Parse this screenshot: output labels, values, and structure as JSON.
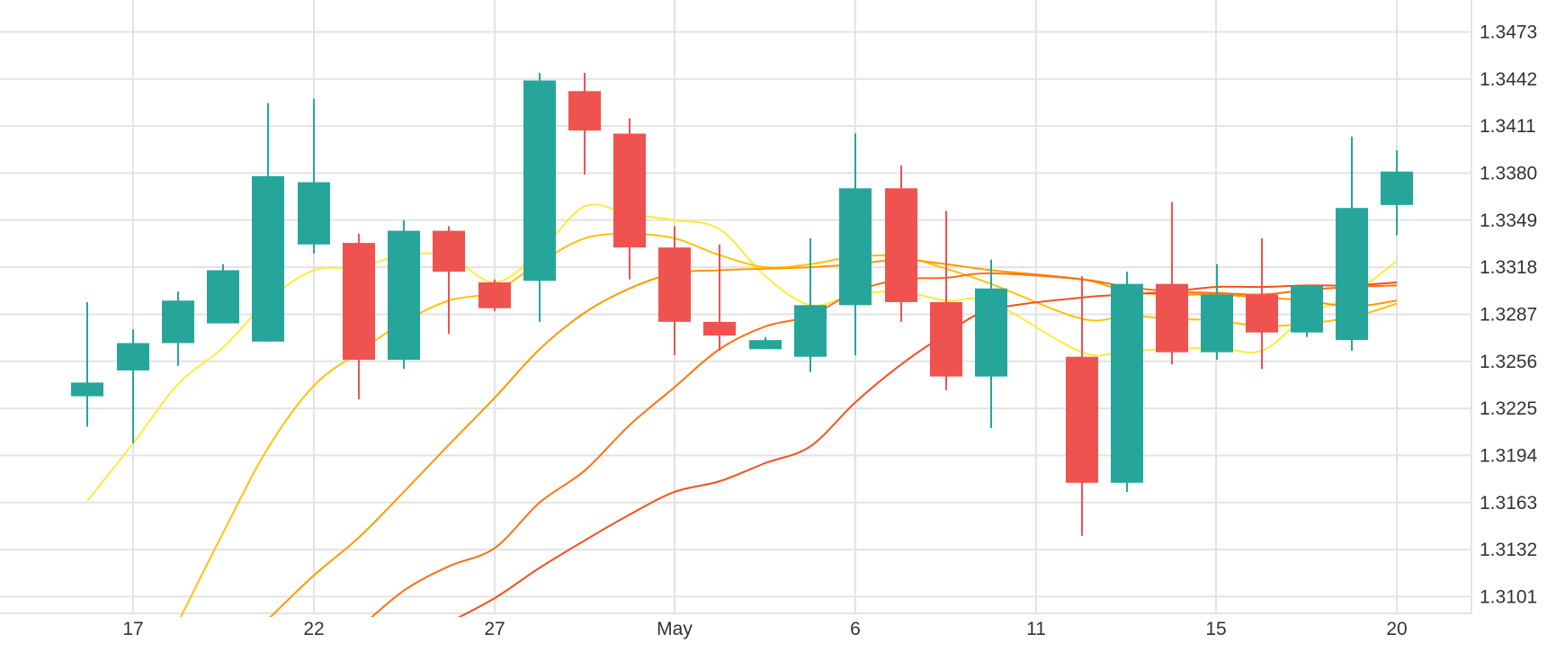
{
  "chart_data": {
    "type": "candlestick",
    "x_ticks": [
      "17",
      "22",
      "27",
      "May",
      "6",
      "11",
      "15",
      "20"
    ],
    "y_ticks": [
      "1.3473",
      "1.3442",
      "1.3411",
      "1.3380",
      "1.3349",
      "1.3318",
      "1.3287",
      "1.3256",
      "1.3225",
      "1.3194",
      "1.3163",
      "1.3132",
      "1.3101"
    ],
    "ylim": [
      1.309,
      1.3494
    ],
    "grid": true,
    "colors": {
      "up": "#26a69a",
      "down": "#ef5350",
      "grid": "#e3e3e3",
      "axis_text": "#333333"
    },
    "series": [
      {
        "type": "candlestick",
        "points": [
          {
            "x": "Apr 16",
            "open": 1.3233,
            "high": 1.3295,
            "low": 1.3213,
            "close": 1.3242
          },
          {
            "x": "Apr 17",
            "open": 1.325,
            "high": 1.3277,
            "low": 1.3202,
            "close": 1.3268
          },
          {
            "x": "Apr 18",
            "open": 1.3268,
            "high": 1.3302,
            "low": 1.3253,
            "close": 1.3296
          },
          {
            "x": "Apr 19",
            "open": 1.3281,
            "high": 1.332,
            "low": 1.3281,
            "close": 1.3316
          },
          {
            "x": "Apr 20",
            "open": 1.3269,
            "high": 1.3426,
            "low": 1.3269,
            "close": 1.3378
          },
          {
            "x": "Apr 22",
            "open": 1.3333,
            "high": 1.3429,
            "low": 1.3327,
            "close": 1.3374
          },
          {
            "x": "Apr 23",
            "open": 1.3334,
            "high": 1.334,
            "low": 1.3231,
            "close": 1.3257
          },
          {
            "x": "Apr 24",
            "open": 1.3257,
            "high": 1.3349,
            "low": 1.3251,
            "close": 1.3342
          },
          {
            "x": "Apr 25",
            "open": 1.3342,
            "high": 1.3345,
            "low": 1.3274,
            "close": 1.3315
          },
          {
            "x": "Apr 26",
            "open": 1.3308,
            "high": 1.331,
            "low": 1.3289,
            "close": 1.3291
          },
          {
            "x": "Apr 28",
            "open": 1.3309,
            "high": 1.3446,
            "low": 1.3282,
            "close": 1.3441
          },
          {
            "x": "Apr 29",
            "open": 1.3434,
            "high": 1.3446,
            "low": 1.3379,
            "close": 1.3408
          },
          {
            "x": "Apr 30",
            "open": 1.3406,
            "high": 1.3416,
            "low": 1.331,
            "close": 1.3331
          },
          {
            "x": "May 1",
            "open": 1.3331,
            "high": 1.3345,
            "low": 1.326,
            "close": 1.3282
          },
          {
            "x": "May 2",
            "open": 1.3282,
            "high": 1.3333,
            "low": 1.3263,
            "close": 1.3273
          },
          {
            "x": "May 3",
            "open": 1.3264,
            "high": 1.3272,
            "low": 1.3264,
            "close": 1.327
          },
          {
            "x": "May 5",
            "open": 1.3259,
            "high": 1.3337,
            "low": 1.3249,
            "close": 1.3293
          },
          {
            "x": "May 6",
            "open": 1.3293,
            "high": 1.3406,
            "low": 1.326,
            "close": 1.337
          },
          {
            "x": "May 7",
            "open": 1.337,
            "high": 1.3385,
            "low": 1.3282,
            "close": 1.3295
          },
          {
            "x": "May 8",
            "open": 1.3295,
            "high": 1.3355,
            "low": 1.3237,
            "close": 1.3246
          },
          {
            "x": "May 9",
            "open": 1.3246,
            "high": 1.3323,
            "low": 1.3212,
            "close": 1.3304
          },
          {
            "x": "May 12",
            "open": 1.3259,
            "high": 1.3312,
            "low": 1.3141,
            "close": 1.3176
          },
          {
            "x": "May 13",
            "open": 1.3176,
            "high": 1.3315,
            "low": 1.317,
            "close": 1.3307
          },
          {
            "x": "May 14",
            "open": 1.3307,
            "high": 1.3361,
            "low": 1.3254,
            "close": 1.3262
          },
          {
            "x": "May 15",
            "open": 1.3262,
            "high": 1.332,
            "low": 1.3257,
            "close": 1.33
          },
          {
            "x": "May 16",
            "open": 1.33,
            "high": 1.3337,
            "low": 1.3251,
            "close": 1.3275
          },
          {
            "x": "May 17",
            "open": 1.3275,
            "high": 1.3305,
            "low": 1.3272,
            "close": 1.3306
          },
          {
            "x": "May 19",
            "open": 1.327,
            "high": 1.3404,
            "low": 1.3263,
            "close": 1.3357
          },
          {
            "x": "May 20",
            "open": 1.3359,
            "high": 1.3395,
            "low": 1.3339,
            "close": 1.3381
          }
        ]
      },
      {
        "type": "line",
        "color": "#ffeb3b",
        "values": [
          1.3164,
          1.3202,
          1.3241,
          1.3265,
          1.3296,
          1.3316,
          1.3318,
          1.3326,
          1.3325,
          1.3308,
          1.3328,
          1.3358,
          1.3353,
          1.3349,
          1.3343,
          1.3312,
          1.3293,
          1.33,
          1.3302,
          1.3296,
          1.3295,
          1.3262,
          1.3263,
          1.3264,
          1.3265,
          1.3263,
          1.3286,
          1.33,
          1.3322
        ]
      },
      {
        "type": "line",
        "color": "#ffc107",
        "values": [
          null,
          null,
          1.3084,
          1.3143,
          1.3199,
          1.324,
          1.3262,
          1.3282,
          1.3296,
          1.3302,
          1.3321,
          1.3337,
          1.334,
          1.3337,
          1.3326,
          1.3318,
          1.332,
          1.3325,
          1.3325,
          1.3317,
          1.3307,
          1.3284,
          1.3286,
          1.3284,
          1.3283,
          1.3279,
          1.3281,
          1.3285,
          1.3294
        ]
      },
      {
        "type": "line",
        "color": "#ff9800",
        "values": [
          null,
          null,
          null,
          null,
          1.3086,
          1.3115,
          1.314,
          1.317,
          1.3201,
          1.3232,
          1.3264,
          1.3288,
          1.3304,
          1.3314,
          1.3316,
          1.3317,
          1.3318,
          1.332,
          1.3323,
          1.332,
          1.3316,
          1.331,
          1.3302,
          1.33,
          1.33,
          1.3298,
          1.3296,
          1.3292,
          1.3296
        ]
      },
      {
        "type": "line",
        "color": "#ff7010",
        "values": [
          null,
          null,
          null,
          null,
          null,
          null,
          1.308,
          1.3105,
          1.3121,
          1.3133,
          1.3163,
          1.3184,
          1.3214,
          1.3239,
          1.3264,
          1.3279,
          1.3286,
          1.3302,
          1.331,
          1.3311,
          1.3314,
          1.331,
          1.3305,
          1.3302,
          1.3301,
          1.33,
          1.3303,
          1.3305,
          1.3306
        ]
      },
      {
        "type": "line",
        "color": "#f4511e",
        "values": [
          null,
          null,
          null,
          null,
          null,
          null,
          null,
          null,
          1.3084,
          1.31,
          1.312,
          1.3138,
          1.3155,
          1.317,
          1.3177,
          1.3189,
          1.32,
          1.3229,
          1.3254,
          1.3274,
          1.329,
          1.3298,
          1.33,
          1.3302,
          1.3305,
          1.3305,
          1.3306,
          1.3306,
          1.3308
        ]
      }
    ]
  }
}
